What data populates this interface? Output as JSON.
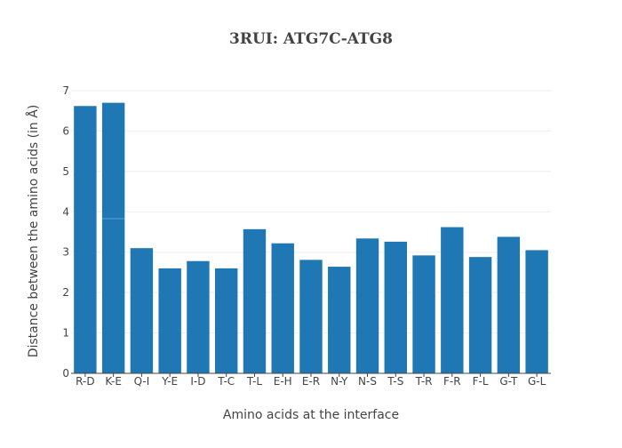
{
  "chart_data": {
    "type": "bar",
    "title": "3RUI: ATG7C-ATG8",
    "xlabel": "Amino acids at the interface",
    "ylabel": "Distance between the amino acids (in Å)",
    "categories": [
      "R-D",
      "K-E",
      "Q-I",
      "Y-E",
      "I-D",
      "T-C",
      "T-L",
      "E-H",
      "E-R",
      "N-Y",
      "N-S",
      "T-S",
      "T-R",
      "F-R",
      "F-L",
      "G-T",
      "G-L"
    ],
    "values": [
      6.62,
      6.7,
      3.1,
      2.6,
      2.78,
      2.6,
      3.57,
      3.22,
      2.81,
      2.64,
      3.34,
      3.26,
      2.92,
      3.62,
      2.88,
      3.38,
      3.05
    ],
    "stacked_segments": [
      {
        "category": "K-E",
        "lower": 3.83
      }
    ],
    "ylim": [
      0,
      7
    ],
    "yticks": [
      0,
      1,
      2,
      3,
      4,
      5,
      6,
      7
    ],
    "grid": true,
    "bar_color": "#1f77b4",
    "grid_color": "#eeeeee"
  }
}
